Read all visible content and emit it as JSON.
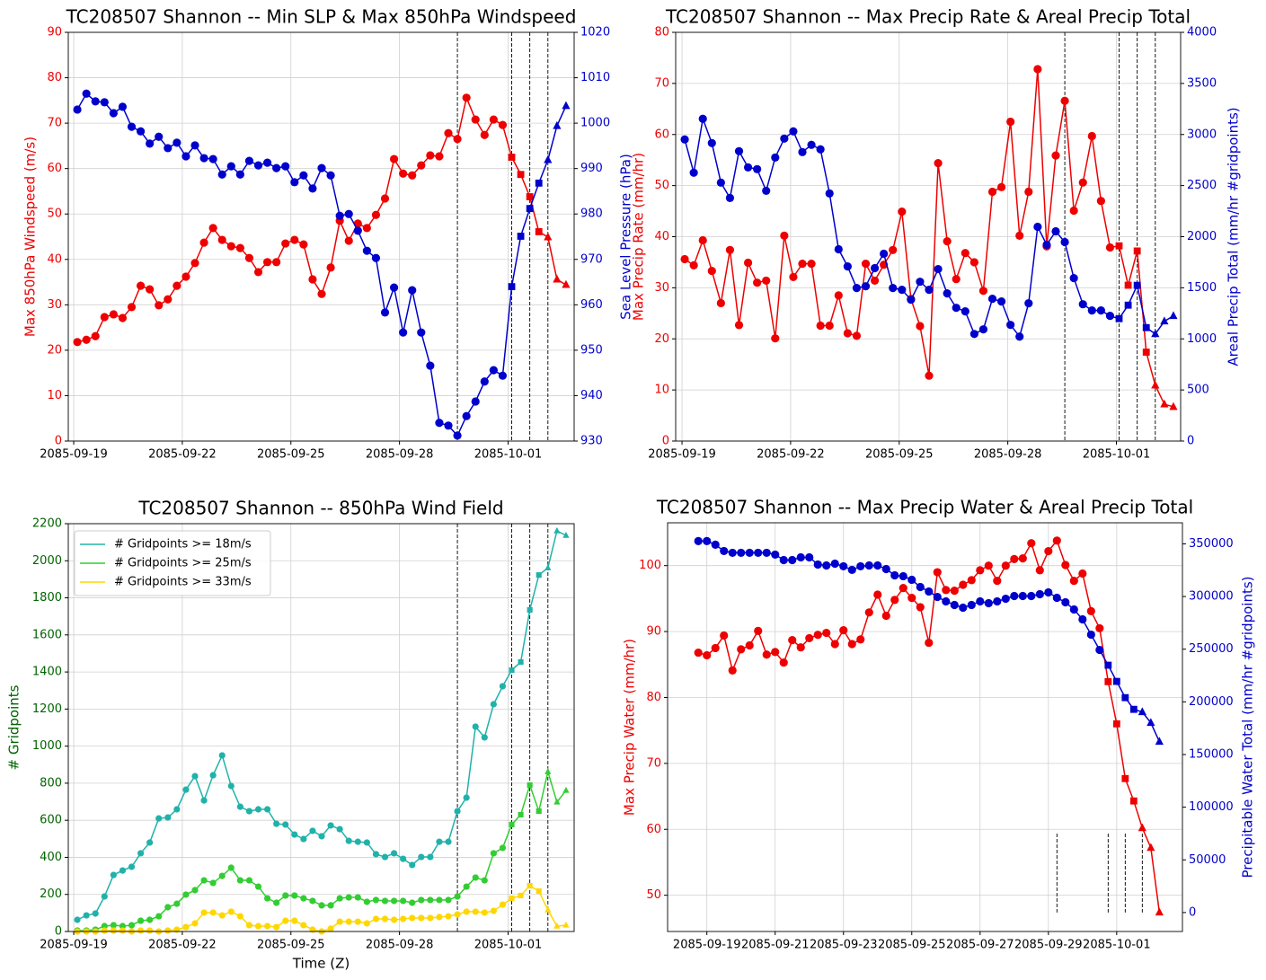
{
  "chart_data": [
    {
      "type": "line",
      "title": "TC208507 Shannon -- Min SLP & Max 850hPa Windspeed",
      "ylabel": "Max 850hPa Windspeed (m/s)",
      "ycolor": "#ee0000",
      "y2label": "Sea Level Pressure (hPa)",
      "y2color": "#0000cd",
      "xlim": [
        -1,
        54.9
      ],
      "xticks": [
        {
          "value": -0.4,
          "label": "2085-09-19"
        },
        {
          "value": 11.6,
          "label": "2085-09-22"
        },
        {
          "value": 23.6,
          "label": "2085-09-25"
        },
        {
          "value": 35.6,
          "label": "2085-09-28"
        },
        {
          "value": 47.6,
          "label": "2085-10-01"
        }
      ],
      "ylim": [
        0,
        90
      ],
      "yticks": [
        0,
        10,
        20,
        30,
        40,
        50,
        60,
        70,
        80,
        90
      ],
      "y2lim": [
        930,
        1020
      ],
      "y2ticks": [
        930,
        940,
        950,
        960,
        970,
        980,
        990,
        1000,
        1010,
        1020
      ],
      "grid": true,
      "vlines": [
        42,
        48,
        50,
        52
      ],
      "marker_breaks": {
        "square": 48,
        "triangle": 52
      },
      "series": [
        {
          "color": "#ee0000",
          "axis": "y",
          "values": [
            21.8,
            22.3,
            23.1,
            27.3,
            27.9,
            27.1,
            29.5,
            34.2,
            33.4,
            29.9,
            31.2,
            34.2,
            36.2,
            39.2,
            43.7,
            46.9,
            44.3,
            42.9,
            42.5,
            40.3,
            37.2,
            39.4,
            39.4,
            43.5,
            44.3,
            43.3,
            35.6,
            32.4,
            38.2,
            48.5,
            44.1,
            47.9,
            46.9,
            49.8,
            53.4,
            62.1,
            58.9,
            58.5,
            60.7,
            62.9,
            62.7,
            67.8,
            66.5,
            75.6,
            70.8,
            67.4,
            70.8,
            69.6,
            62.5,
            58.7,
            53.8,
            46.1,
            44.9,
            35.6,
            34.4
          ]
        },
        {
          "color": "#0000cd",
          "axis": "y2",
          "values": [
            1003.0,
            1006.5,
            1004.8,
            1004.6,
            1002.2,
            1003.6,
            999.2,
            998.2,
            995.5,
            997.0,
            994.5,
            995.7,
            992.7,
            995.1,
            992.3,
            992.1,
            988.7,
            990.5,
            988.7,
            991.7,
            990.7,
            991.3,
            990.1,
            990.5,
            987.0,
            988.5,
            985.6,
            990.1,
            988.5,
            979.6,
            980.0,
            976.3,
            971.9,
            970.3,
            958.3,
            963.8,
            953.9,
            963.2,
            953.9,
            946.6,
            934.0,
            933.4,
            931.2,
            935.5,
            938.7,
            943.1,
            945.6,
            944.4,
            964.0,
            975.1,
            981.2,
            986.8,
            991.9,
            999.4,
            1003.8
          ]
        }
      ]
    },
    {
      "type": "line",
      "title": "TC208507 Shannon -- Max Precip Rate & Areal Precip Total",
      "ylabel": "Max Precip Rate (mm/hr)",
      "ycolor": "#ee0000",
      "y2label": "Areal Precip Total (mm/hr #gridpoints)",
      "y2color": "#0000cd",
      "xlim": [
        -1,
        54.8
      ],
      "xticks": [
        {
          "value": -0.3,
          "label": "2085-09-19"
        },
        {
          "value": 11.7,
          "label": "2085-09-22"
        },
        {
          "value": 23.7,
          "label": "2085-09-25"
        },
        {
          "value": 35.7,
          "label": "2085-09-28"
        },
        {
          "value": 47.7,
          "label": "2085-10-01"
        }
      ],
      "ylim": [
        0,
        80
      ],
      "yticks": [
        0,
        10,
        20,
        30,
        40,
        50,
        60,
        70,
        80
      ],
      "y2lim": [
        0,
        4000
      ],
      "y2ticks": [
        0,
        500,
        1000,
        1500,
        2000,
        2500,
        3000,
        3500,
        4000
      ],
      "grid": true,
      "vlines": [
        42,
        48,
        50,
        52
      ],
      "marker_breaks": {
        "square": 48,
        "triangle": 52
      },
      "series": [
        {
          "color": "#ee0000",
          "axis": "y",
          "values": [
            35.6,
            34.4,
            39.3,
            33.3,
            27.0,
            37.4,
            22.7,
            34.9,
            31.0,
            31.4,
            20.1,
            40.2,
            32.1,
            34.7,
            34.7,
            22.6,
            22.6,
            28.5,
            21.1,
            20.6,
            34.7,
            31.4,
            34.5,
            37.4,
            44.9,
            27.8,
            22.5,
            12.8,
            54.4,
            39.1,
            31.7,
            36.8,
            35.0,
            29.4,
            48.8,
            49.7,
            62.5,
            40.2,
            48.8,
            72.8,
            38.1,
            55.9,
            66.6,
            45.1,
            50.6,
            59.7,
            47.0,
            37.9,
            38.2,
            30.5,
            37.2,
            17.4,
            10.9,
            7.2,
            6.7
          ]
        },
        {
          "color": "#0000cd",
          "axis": "y2",
          "values": [
            2952,
            2626,
            3154,
            2916,
            2529,
            2379,
            2837,
            2678,
            2661,
            2449,
            2775,
            2960,
            3031,
            2828,
            2899,
            2855,
            2423,
            1877,
            1709,
            1498,
            1515,
            1692,
            1833,
            1498,
            1480,
            1383,
            1559,
            1480,
            1683,
            1445,
            1304,
            1269,
            1048,
            1093,
            1392,
            1366,
            1137,
            1022,
            1348,
            2097,
            1921,
            2053,
            1947,
            1595,
            1339,
            1278,
            1278,
            1225,
            1198,
            1330,
            1524,
            1110,
            1048,
            1172,
            1225
          ]
        }
      ]
    },
    {
      "type": "line",
      "title": "TC208507 Shannon -- 850hPa Wind Field",
      "ylabel": "# Gridpoints",
      "ycolor": "#006400",
      "xlabel": "Time (Z)",
      "xlim": [
        -1,
        54.9
      ],
      "xticks": [
        {
          "value": -0.4,
          "label": "2085-09-19"
        },
        {
          "value": 11.6,
          "label": "2085-09-22"
        },
        {
          "value": 23.6,
          "label": "2085-09-25"
        },
        {
          "value": 35.6,
          "label": "2085-09-28"
        },
        {
          "value": 47.6,
          "label": "2085-10-01"
        }
      ],
      "ylim": [
        0,
        2200
      ],
      "yticks": [
        0,
        200,
        400,
        600,
        800,
        1000,
        1200,
        1400,
        1600,
        1800,
        2000,
        2200
      ],
      "grid": true,
      "legend": "upper left",
      "vlines": [
        42,
        48,
        50,
        52
      ],
      "marker_breaks": {
        "square": 48,
        "triangle": 52
      },
      "series": [
        {
          "name": "# Gridpoints >= 18m/s",
          "color": "#20b2aa",
          "axis": "y",
          "values": [
            63,
            87,
            97,
            189,
            305,
            329,
            349,
            422,
            480,
            610,
            615,
            659,
            765,
            838,
            707,
            843,
            950,
            785,
            673,
            649,
            659,
            659,
            581,
            577,
            523,
            499,
            543,
            514,
            572,
            552,
            489,
            484,
            480,
            417,
            402,
            422,
            392,
            359,
            402,
            402,
            484,
            484,
            649,
            722,
            1105,
            1047,
            1226,
            1323,
            1410,
            1454,
            1735,
            1923,
            1962,
            2161,
            2137
          ]
        },
        {
          "name": "# Gridpoints >= 25m/s",
          "color": "#32cd32",
          "axis": "y",
          "values": [
            5,
            5,
            10,
            29,
            34,
            29,
            34,
            58,
            63,
            82,
            131,
            150,
            199,
            223,
            276,
            262,
            300,
            344,
            276,
            276,
            242,
            179,
            155,
            194,
            194,
            179,
            165,
            141,
            141,
            179,
            184,
            184,
            160,
            170,
            165,
            165,
            165,
            155,
            170,
            170,
            170,
            170,
            189,
            242,
            291,
            276,
            422,
            451,
            577,
            630,
            790,
            649,
            862,
            698,
            761
          ]
        },
        {
          "name": "# Gridpoints >= 33m/s",
          "color": "#ffd700",
          "axis": "y",
          "values": [
            0,
            0,
            0,
            5,
            5,
            5,
            0,
            5,
            5,
            0,
            5,
            10,
            24,
            44,
            102,
            102,
            87,
            107,
            82,
            34,
            29,
            29,
            24,
            58,
            58,
            34,
            10,
            0,
            15,
            53,
            53,
            53,
            44,
            68,
            68,
            63,
            68,
            73,
            73,
            73,
            78,
            82,
            92,
            107,
            107,
            102,
            111,
            145,
            179,
            194,
            247,
            218,
            116,
            29,
            34
          ]
        }
      ]
    },
    {
      "type": "line",
      "title": "TC208507 Shannon -- Max Precip Water & Areal Precip Total",
      "ylabel": "Max Precip Water (mm/hr)",
      "ycolor": "#ee0000",
      "y2label": "Precipitable Water Total (mm/hr #gridpoints)",
      "y2color": "#0000cd",
      "xlim": [
        -3.6,
        56.7
      ],
      "xticks": [
        {
          "value": 1,
          "label": "2085-09-19"
        },
        {
          "value": 9,
          "label": "2085-09-21"
        },
        {
          "value": 17,
          "label": "2085-09-23"
        },
        {
          "value": 25,
          "label": "2085-09-25"
        },
        {
          "value": 33,
          "label": "2085-09-27"
        },
        {
          "value": 41,
          "label": "2085-09-29"
        },
        {
          "value": 49,
          "label": "2085-10-01"
        }
      ],
      "ylim": [
        44.5,
        106.5
      ],
      "yticks": [
        50,
        60,
        70,
        80,
        90,
        100
      ],
      "y2lim": [
        -18000,
        370000
      ],
      "y2ticks": [
        0,
        50000,
        100000,
        150000,
        200000,
        250000,
        300000,
        350000
      ],
      "grid": true,
      "vlines": [
        42,
        48,
        50,
        52
      ],
      "vline_span": [
        0,
        75000
      ],
      "marker_breaks": {
        "square": 48,
        "triangle": 52
      },
      "series": [
        {
          "color": "#ee0000",
          "axis": "y",
          "values": [
            86.8,
            86.4,
            87.5,
            89.4,
            84.1,
            87.3,
            87.9,
            90.1,
            86.5,
            86.9,
            85.3,
            88.7,
            87.6,
            89.0,
            89.5,
            89.8,
            88.1,
            90.2,
            88.1,
            88.8,
            92.9,
            95.6,
            92.4,
            94.8,
            96.6,
            95.1,
            93.7,
            88.3,
            99.0,
            96.3,
            96.2,
            97.1,
            97.8,
            99.3,
            100.0,
            97.7,
            100.0,
            101.0,
            101.1,
            103.4,
            99.3,
            102.2,
            103.8,
            100.1,
            97.7,
            98.8,
            93.1,
            90.5,
            82.4,
            76.0,
            67.7,
            64.3,
            60.2,
            57.2,
            47.4
          ]
        },
        {
          "color": "#0000cd",
          "axis": "y2",
          "values": [
            352600,
            352600,
            349200,
            343200,
            341500,
            341500,
            341500,
            341500,
            341500,
            339800,
            334600,
            334600,
            337200,
            337200,
            330400,
            329500,
            331200,
            328700,
            325300,
            328700,
            329500,
            329500,
            326100,
            320100,
            319300,
            315900,
            309000,
            304800,
            299600,
            295400,
            292000,
            289400,
            292000,
            295400,
            293700,
            295400,
            297900,
            300500,
            300500,
            300500,
            302200,
            303900,
            298800,
            294500,
            287700,
            278300,
            263800,
            249300,
            234800,
            219400,
            204000,
            192900,
            190400,
            180100,
            162200
          ]
        }
      ]
    }
  ]
}
